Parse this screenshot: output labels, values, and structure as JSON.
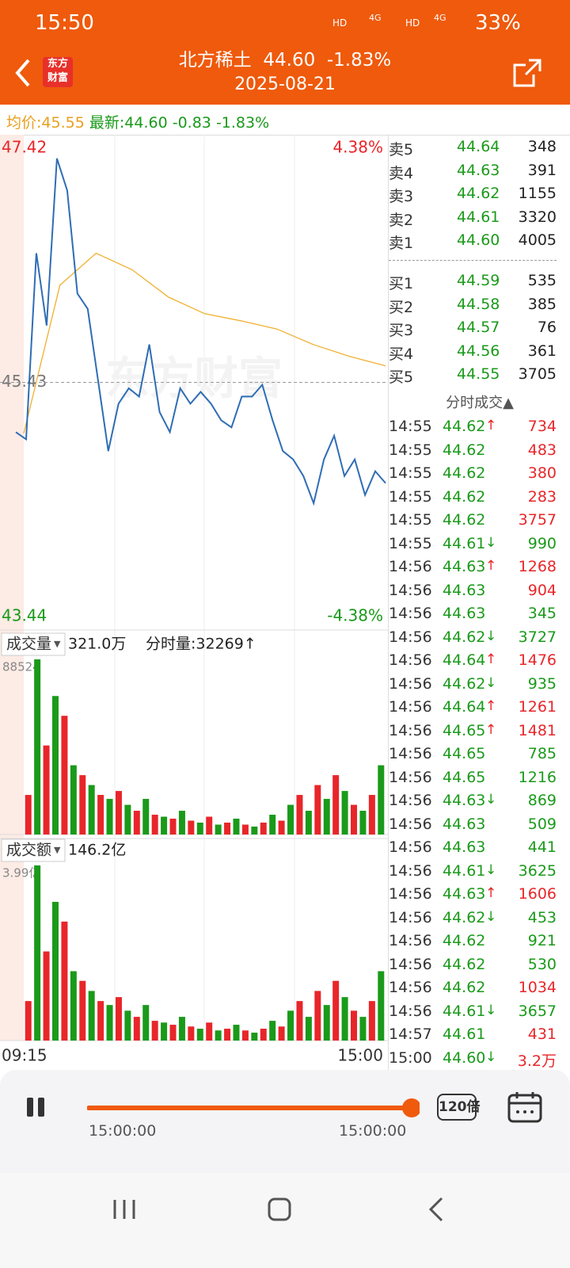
{
  "status_bar": {
    "time": "15:50",
    "net1": "HD",
    "net2": "4G",
    "net3": "HD",
    "net4": "4G",
    "battery": "33%"
  },
  "header": {
    "logo_top": "东方",
    "logo_bottom": "财富",
    "title": "北方稀土  44.60  -1.83%",
    "date": "2025-08-21"
  },
  "summary": {
    "avg_label": "均价:",
    "avg": "45.55",
    "latest_label": "最新:",
    "latest": "44.60",
    "change": "-0.83",
    "pct": "-1.83%"
  },
  "price_chart": {
    "ylim": [
      43.44,
      47.42
    ],
    "yticks": [
      47.42,
      45.43,
      43.44
    ],
    "pct_ticks": [
      {
        "value": 47.42,
        "label": "4.38%"
      },
      {
        "value": 43.44,
        "label": "-4.38%"
      }
    ],
    "watermark": "东方财富",
    "price_color": "#2f6db5",
    "avg_color": "#f0b030",
    "price": [
      45.01,
      44.95,
      46.52,
      45.91,
      47.32,
      47.05,
      46.18,
      46.05,
      45.45,
      44.85,
      45.25,
      45.38,
      45.31,
      45.75,
      45.18,
      45.01,
      45.38,
      45.25,
      45.35,
      45.25,
      45.11,
      45.05,
      45.31,
      45.31,
      45.41,
      45.11,
      44.85,
      44.78,
      44.64,
      44.41,
      44.78,
      44.98,
      44.64,
      44.78,
      44.48,
      44.68,
      44.58
    ],
    "avg": [
      45.0,
      46.25,
      46.52,
      46.38,
      46.15,
      46.01,
      45.95,
      45.88,
      45.75,
      45.65,
      45.57
    ]
  },
  "volume": {
    "label": "成交量",
    "total": "321.0万",
    "minute": "分时量:32269↑",
    "ylim": [
      0,
      88524
    ],
    "yticks": [
      88524
    ],
    "values": [
      20000,
      88524,
      45000,
      70000,
      60000,
      35000,
      30000,
      25000,
      20000,
      18000,
      22000,
      15000,
      12000,
      18000,
      10000,
      9000,
      8000,
      12000,
      7000,
      6000,
      9000,
      5000,
      6000,
      8000,
      5000,
      4000,
      6000,
      10000,
      7000,
      15000,
      20000,
      12000,
      25000,
      18000,
      30000,
      22000,
      15000,
      12000,
      20000,
      35000
    ]
  },
  "amount": {
    "label": "成交额",
    "total": "146.2亿",
    "ylim": [
      0,
      3.99
    ],
    "yticks": [
      {
        "value": 3.99,
        "label": "3.99亿"
      }
    ],
    "values": [
      0.9,
      3.99,
      2.03,
      3.16,
      2.71,
      1.58,
      1.36,
      1.13,
      0.9,
      0.81,
      0.99,
      0.68,
      0.54,
      0.81,
      0.45,
      0.41,
      0.36,
      0.54,
      0.32,
      0.27,
      0.41,
      0.23,
      0.27,
      0.36,
      0.23,
      0.18,
      0.27,
      0.45,
      0.32,
      0.68,
      0.9,
      0.54,
      1.13,
      0.81,
      1.36,
      0.99,
      0.68,
      0.54,
      0.9,
      1.58
    ]
  },
  "time_axis": [
    "09:15",
    "15:00"
  ],
  "colors": {
    "up": "#e8262a",
    "down": "#1a9a1a"
  },
  "order_book": {
    "sell": [
      [
        "卖5",
        "44.64",
        "348"
      ],
      [
        "卖4",
        "44.63",
        "391"
      ],
      [
        "卖3",
        "44.62",
        "1155"
      ],
      [
        "卖2",
        "44.61",
        "3320"
      ],
      [
        "卖1",
        "44.60",
        "4005"
      ]
    ],
    "buy": [
      [
        "买1",
        "44.59",
        "535"
      ],
      [
        "买2",
        "44.58",
        "385"
      ],
      [
        "买3",
        "44.57",
        "76"
      ],
      [
        "买4",
        "44.56",
        "361"
      ],
      [
        "买5",
        "44.55",
        "3705"
      ]
    ]
  },
  "trades_title": "分时成交▲",
  "trades": [
    {
      "time": "14:55",
      "price": "44.62",
      "arrow": "↑",
      "volume": "734",
      "color": "#e8262a"
    },
    {
      "time": "14:55",
      "price": "44.62",
      "volume": "483",
      "color": "#e8262a"
    },
    {
      "time": "14:55",
      "price": "44.62",
      "volume": "380",
      "color": "#e8262a"
    },
    {
      "time": "14:55",
      "price": "44.62",
      "volume": "283",
      "color": "#e8262a"
    },
    {
      "time": "14:55",
      "price": "44.62",
      "volume": "3757",
      "color": "#e8262a"
    },
    {
      "time": "14:55",
      "price": "44.61",
      "arrow": "↓",
      "volume": "990",
      "color": "#1a9a1a"
    },
    {
      "time": "14:56",
      "price": "44.63",
      "arrow": "↑",
      "volume": "1268",
      "color": "#e8262a"
    },
    {
      "time": "14:56",
      "price": "44.63",
      "volume": "904",
      "color": "#e8262a"
    },
    {
      "time": "14:56",
      "price": "44.63",
      "volume": "345",
      "color": "#1a9a1a"
    },
    {
      "time": "14:56",
      "price": "44.62",
      "arrow": "↓",
      "volume": "3727",
      "color": "#1a9a1a"
    },
    {
      "time": "14:56",
      "price": "44.64",
      "arrow": "↑",
      "volume": "1476",
      "color": "#e8262a"
    },
    {
      "time": "14:56",
      "price": "44.62",
      "arrow": "↓",
      "volume": "935",
      "color": "#1a9a1a"
    },
    {
      "time": "14:56",
      "price": "44.64",
      "arrow": "↑",
      "volume": "1261",
      "color": "#e8262a"
    },
    {
      "time": "14:56",
      "price": "44.65",
      "arrow": "↑",
      "volume": "1481",
      "color": "#e8262a"
    },
    {
      "time": "14:56",
      "price": "44.65",
      "volume": "785",
      "color": "#1a9a1a"
    },
    {
      "time": "14:56",
      "price": "44.65",
      "volume": "1216",
      "color": "#1a9a1a"
    },
    {
      "time": "14:56",
      "price": "44.63",
      "arrow": "↓",
      "volume": "869",
      "color": "#1a9a1a"
    },
    {
      "time": "14:56",
      "price": "44.63",
      "volume": "509",
      "color": "#1a9a1a"
    },
    {
      "time": "14:56",
      "price": "44.63",
      "volume": "441",
      "color": "#1a9a1a"
    },
    {
      "time": "14:56",
      "price": "44.61",
      "arrow": "↓",
      "volume": "3625",
      "color": "#1a9a1a"
    },
    {
      "time": "14:56",
      "price": "44.63",
      "arrow": "↑",
      "volume": "1606",
      "color": "#e8262a"
    },
    {
      "time": "14:56",
      "price": "44.62",
      "arrow": "↓",
      "volume": "453",
      "color": "#1a9a1a"
    },
    {
      "time": "14:56",
      "price": "44.62",
      "volume": "921",
      "color": "#1a9a1a"
    },
    {
      "time": "14:56",
      "price": "44.62",
      "volume": "530",
      "color": "#1a9a1a"
    },
    {
      "time": "14:56",
      "price": "44.62",
      "volume": "1034",
      "color": "#e8262a"
    },
    {
      "time": "14:56",
      "price": "44.61",
      "arrow": "↓",
      "volume": "3657",
      "color": "#1a9a1a"
    },
    {
      "time": "14:57",
      "price": "44.61",
      "volume": "431",
      "color": "#e8262a"
    },
    {
      "time": "15:00",
      "price": "44.60",
      "arrow": "↓",
      "volume": "3.2万",
      "color": "#e8262a"
    }
  ],
  "player": {
    "start": "15:00:00",
    "end": "15:00:00",
    "speed": "120倍"
  }
}
